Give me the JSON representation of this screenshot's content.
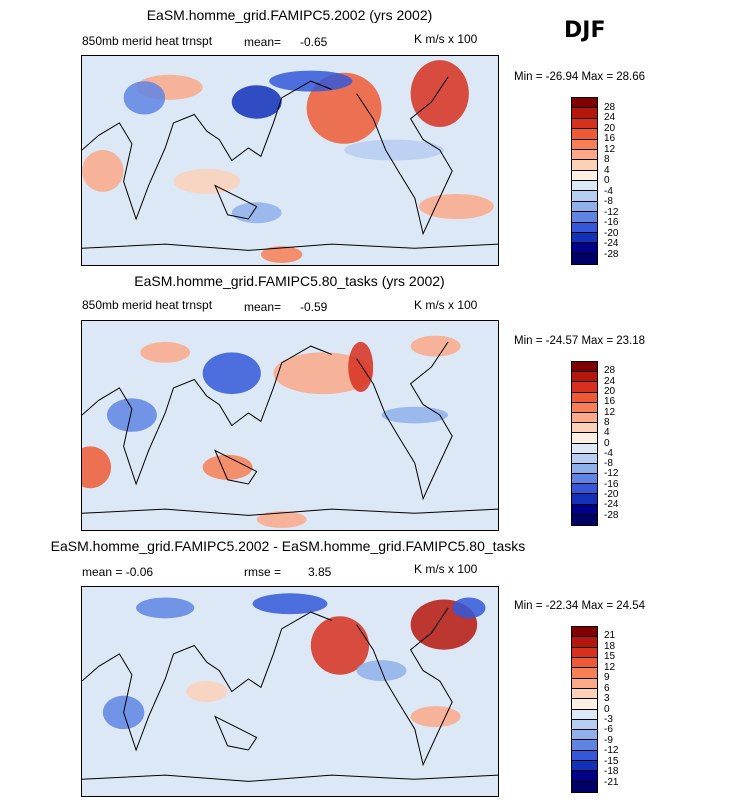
{
  "season": "DJF",
  "panels": [
    {
      "title": "EaSM.homme_grid.FAMIPC5.2002 (yrs 2002)",
      "left_label": "850mb merid heat trnspt",
      "stat_label": "mean=",
      "stat_value": "-0.65",
      "units": "K m/s x 100",
      "min_max": "Min = -26.94 Max =  28.66",
      "colorbar": [
        "28",
        "24",
        "20",
        "16",
        "12",
        "8",
        "4",
        "0",
        "-4",
        "-8",
        "-12",
        "-16",
        "-20",
        "-24",
        "-28"
      ]
    },
    {
      "title": "EaSM.homme_grid.FAMIPC5.80_tasks (yrs 2002)",
      "left_label": "850mb merid heat trnspt",
      "stat_label": "mean=",
      "stat_value": "-0.59",
      "units": "K m/s x 100",
      "min_max": "Min = -24.57 Max =  23.18",
      "colorbar": [
        "28",
        "24",
        "20",
        "16",
        "12",
        "8",
        "4",
        "0",
        "-4",
        "-8",
        "-12",
        "-16",
        "-20",
        "-24",
        "-28"
      ]
    },
    {
      "title": "EaSM.homme_grid.FAMIPC5.2002 - EaSM.homme_grid.FAMIPC5.80_tasks",
      "left_label": "mean =   -0.06",
      "stat_label": "rmse =",
      "stat_value": "3.85",
      "units": "K m/s x 100",
      "min_max": "Min = -22.34 Max =  24.54",
      "colorbar": [
        "21",
        "18",
        "15",
        "12",
        "9",
        "6",
        "3",
        "0",
        "-3",
        "-6",
        "-9",
        "-12",
        "-15",
        "-18",
        "-21"
      ]
    }
  ],
  "colors": [
    "#800000",
    "#b5170c",
    "#d7301f",
    "#ee5a35",
    "#f77f55",
    "#fca98a",
    "#fdd0b8",
    "#fdf0e2",
    "#dce8f6",
    "#b7cdf1",
    "#8fb0ea",
    "#5f85e3",
    "#3458d8",
    "#1230b8",
    "#00008a",
    "#000066"
  ],
  "chart_data": [
    {
      "type": "heatmap",
      "title": "EaSM.homme_grid.FAMIPC5.2002 (yrs 2002)",
      "variable": "850mb merid heat trnspt",
      "units": "K m/s x 100",
      "mean": -0.65,
      "min": -26.94,
      "max": 28.66,
      "levels": [
        -28,
        -24,
        -20,
        -16,
        -12,
        -8,
        -4,
        0,
        4,
        8,
        12,
        16,
        20,
        24,
        28
      ]
    },
    {
      "type": "heatmap",
      "title": "EaSM.homme_grid.FAMIPC5.80_tasks (yrs 2002)",
      "variable": "850mb merid heat trnspt",
      "units": "K m/s x 100",
      "mean": -0.59,
      "min": -24.57,
      "max": 23.18,
      "levels": [
        -28,
        -24,
        -20,
        -16,
        -12,
        -8,
        -4,
        0,
        4,
        8,
        12,
        16,
        20,
        24,
        28
      ]
    },
    {
      "type": "heatmap",
      "title": "EaSM.homme_grid.FAMIPC5.2002 - EaSM.homme_grid.FAMIPC5.80_tasks",
      "units": "K m/s x 100",
      "mean": -0.06,
      "rmse": 3.85,
      "min": -22.34,
      "max": 24.54,
      "levels": [
        -21,
        -18,
        -15,
        -12,
        -9,
        -6,
        -3,
        0,
        3,
        6,
        9,
        12,
        15,
        18,
        21
      ]
    }
  ]
}
